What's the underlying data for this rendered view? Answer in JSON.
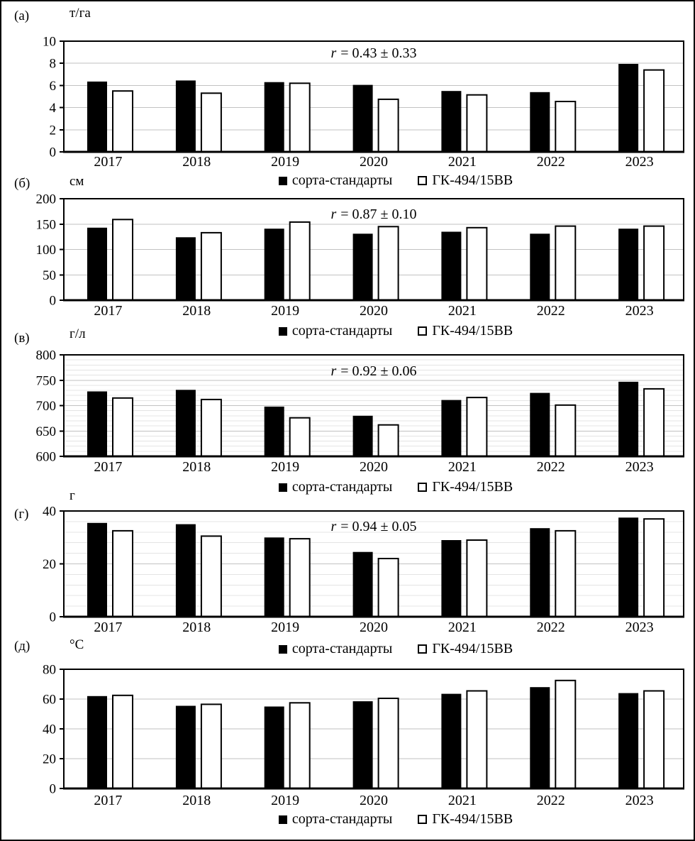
{
  "figure": {
    "description": "Пятипанельная диаграмма сравнения сортов по годам 2017–2023"
  },
  "legend": {
    "items": [
      {
        "label": "сорта-стандарты",
        "swatch": "black-square-icon",
        "color": "#000000"
      },
      {
        "label": "ГК-494/15ВВ",
        "swatch": "white-square-icon",
        "color": "#ffffff"
      }
    ]
  },
  "colors": {
    "bar_fill_series1": "#000000",
    "bar_fill_series2": "#ffffff",
    "bar_stroke": "#000000",
    "grid_major": "#c2c2c2",
    "grid_minor": "#e4e4e4",
    "frame": "#000000"
  },
  "chart_data": [
    {
      "id": "a",
      "type": "bar",
      "panel": "(а)",
      "unit": "т/га",
      "categories": [
        "2017",
        "2018",
        "2019",
        "2020",
        "2021",
        "2022",
        "2023"
      ],
      "series": [
        {
          "name": "сорта-стандарты",
          "values": [
            6.35,
            6.45,
            6.3,
            6.05,
            5.5,
            5.4,
            7.95
          ]
        },
        {
          "name": "ГК-494/15ВВ",
          "values": [
            5.5,
            5.3,
            6.2,
            4.75,
            5.15,
            4.55,
            7.4
          ]
        }
      ],
      "ylim": [
        0,
        10
      ],
      "yticks": [
        0,
        2,
        4,
        6,
        8,
        10
      ],
      "minor_step": null,
      "annotation": {
        "var": "r",
        "rest": "= 0.43 ± 0.33"
      },
      "grid": true,
      "legend_position": "bottom"
    },
    {
      "id": "b",
      "type": "bar",
      "panel": "(б)",
      "unit": "см",
      "categories": [
        "2017",
        "2018",
        "2019",
        "2020",
        "2021",
        "2022",
        "2023"
      ],
      "series": [
        {
          "name": "сорта-стандарты",
          "values": [
            143,
            124,
            141,
            131,
            135,
            131,
            141
          ]
        },
        {
          "name": "ГК-494/15ВВ",
          "values": [
            159,
            133,
            154,
            145,
            143,
            146,
            146
          ]
        }
      ],
      "ylim": [
        0,
        200
      ],
      "yticks": [
        0,
        50,
        100,
        150,
        200
      ],
      "minor_step": null,
      "annotation": {
        "var": "r",
        "rest": "= 0.87 ± 0.10"
      },
      "grid": true,
      "legend_position": "bottom"
    },
    {
      "id": "v",
      "type": "bar",
      "panel": "(в)",
      "unit": "г/л",
      "categories": [
        "2017",
        "2018",
        "2019",
        "2020",
        "2021",
        "2022",
        "2023"
      ],
      "series": [
        {
          "name": "сорта-стандарты",
          "values": [
            728,
            731,
            698,
            680,
            711,
            725,
            747
          ]
        },
        {
          "name": "ГК-494/15ВВ",
          "values": [
            715,
            712,
            676,
            662,
            716,
            701,
            733
          ]
        }
      ],
      "ylim": [
        600,
        800
      ],
      "yticks": [
        600,
        650,
        700,
        750,
        800
      ],
      "minor_step": 10,
      "annotation": {
        "var": "r",
        "rest": "= 0.92 ± 0.06"
      },
      "grid": true,
      "legend_position": "bottom"
    },
    {
      "id": "g",
      "type": "bar",
      "panel": "(г)",
      "unit": "г",
      "categories": [
        "2017",
        "2018",
        "2019",
        "2020",
        "2021",
        "2022",
        "2023"
      ],
      "series": [
        {
          "name": "сорта-стандарты",
          "values": [
            35.5,
            35,
            30,
            24.5,
            29,
            33.5,
            37.5
          ]
        },
        {
          "name": "ГК-494/15ВВ",
          "values": [
            32.5,
            30.5,
            29.5,
            22,
            29,
            32.5,
            37
          ]
        }
      ],
      "ylim": [
        0,
        40
      ],
      "yticks": [
        0,
        20,
        40
      ],
      "minor_step": 4,
      "annotation": {
        "var": "r",
        "rest": "= 0.94 ± 0.05"
      },
      "grid": true,
      "legend_position": "bottom"
    },
    {
      "id": "d",
      "type": "bar",
      "panel": "(д)",
      "unit": "°С",
      "categories": [
        "2017",
        "2018",
        "2019",
        "2020",
        "2021",
        "2022",
        "2023"
      ],
      "series": [
        {
          "name": "сорта-стандарты",
          "values": [
            62,
            55.5,
            55,
            58.5,
            63.5,
            68,
            64
          ]
        },
        {
          "name": "ГК-494/15ВВ",
          "values": [
            62.5,
            56.5,
            57.5,
            60.5,
            65.5,
            72.5,
            65.5
          ]
        }
      ],
      "ylim": [
        0,
        80
      ],
      "yticks": [
        0,
        20,
        40,
        60,
        80
      ],
      "minor_step": null,
      "annotation": null,
      "grid": true,
      "legend_position": "bottom"
    }
  ]
}
